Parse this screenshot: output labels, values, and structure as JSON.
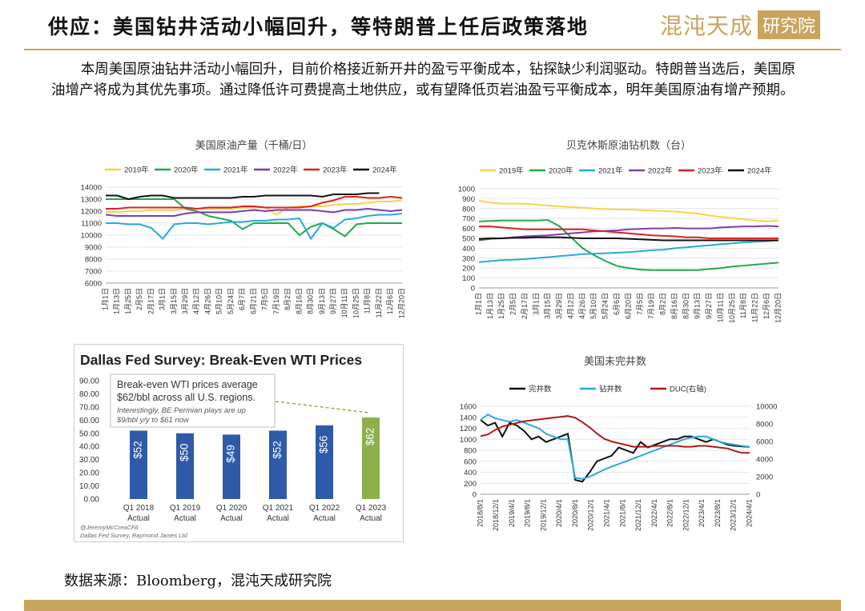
{
  "header": {
    "title": "供应：美国钻井活动小幅回升，等特朗普上任后政策落地",
    "logo_text": "混沌天成",
    "logo_box": "研究院"
  },
  "paragraph": "本周美国原油钻井活动小幅回升，目前价格接近新开井的盈亏平衡成本，钻探缺少利润驱动。特朗普当选后，美国原油增产将成为其优先事项。通过降低许可费提高土地供应，或有望降低页岩油盈亏平衡成本，明年美国原油有增产预期。",
  "source": "数据来源：Bloomberg，混沌天成研究院",
  "colors": {
    "y2019": "#f5d44a",
    "y2020": "#22a84a",
    "y2021": "#29a8dc",
    "y2022": "#7a3fb0",
    "y2023": "#e02020",
    "y2024": "#111111",
    "gold": "#c9a45c",
    "bar": "#2e5aa8",
    "bar_last": "#8db04a"
  },
  "chart_data": [
    {
      "id": "production",
      "type": "line",
      "title": "美国原油产量（千桶/日）",
      "ylim": [
        6000,
        14000
      ],
      "yticks": [
        6000,
        7000,
        8000,
        9000,
        10000,
        11000,
        12000,
        13000,
        14000
      ],
      "x_ticks": [
        "1月1日",
        "1月13日",
        "1月25日",
        "2月5日",
        "2月17日",
        "3月1日",
        "3月15日",
        "3月29日",
        "4月12日",
        "4月26日",
        "5月10日",
        "5月24日",
        "6月7日",
        "6月21日",
        "7月5日",
        "7月19日",
        "8月2日",
        "8月16日",
        "8月30日",
        "9月13日",
        "9月27日",
        "10月11日",
        "10月25日",
        "11月8日",
        "11月22日",
        "12月6日",
        "12月20日"
      ],
      "series": [
        {
          "name": "2019年",
          "color": "#f5d44a",
          "values": [
            11900,
            11900,
            12000,
            12000,
            12100,
            12100,
            12100,
            12200,
            12200,
            12200,
            12200,
            12200,
            12300,
            12300,
            12300,
            11700,
            12300,
            12400,
            12400,
            12400,
            12500,
            12600,
            12600,
            12700,
            12800,
            12800,
            12900
          ]
        },
        {
          "name": "2020年",
          "color": "#22a84a",
          "values": [
            13000,
            13000,
            13000,
            13000,
            13000,
            13000,
            13000,
            12200,
            12000,
            11600,
            11400,
            11200,
            10500,
            11000,
            11000,
            11000,
            11000,
            10000,
            10700,
            11000,
            10500,
            9900,
            10900,
            11000,
            11000,
            11000,
            11000
          ]
        },
        {
          "name": "2021年",
          "color": "#29a8dc",
          "values": [
            11000,
            11000,
            10900,
            10900,
            10600,
            9700,
            10900,
            11000,
            11000,
            10900,
            11000,
            11100,
            11100,
            11200,
            11200,
            11300,
            11300,
            11400,
            9700,
            11000,
            10600,
            11300,
            11400,
            11600,
            11700,
            11700,
            11800
          ]
        },
        {
          "name": "2022年",
          "color": "#7a3fb0",
          "values": [
            11700,
            11600,
            11600,
            11600,
            11600,
            11600,
            11600,
            11800,
            11900,
            11900,
            11900,
            11900,
            12000,
            12100,
            12000,
            12100,
            12100,
            12100,
            12100,
            12000,
            11900,
            12100,
            12100,
            12200,
            12100,
            12000,
            12100
          ]
        },
        {
          "name": "2023年",
          "color": "#e02020",
          "values": [
            12200,
            12200,
            12300,
            12300,
            12300,
            12300,
            12300,
            12300,
            12200,
            12300,
            12300,
            12300,
            12400,
            12400,
            12300,
            12300,
            12300,
            12300,
            12400,
            12700,
            12900,
            13200,
            13200,
            13100,
            13100,
            13200,
            13100
          ]
        },
        {
          "name": "2024年",
          "color": "#111111",
          "values": [
            13300,
            13300,
            13000,
            13200,
            13300,
            13300,
            13100,
            13100,
            13100,
            13100,
            13100,
            13100,
            13200,
            13200,
            13300,
            13300,
            13300,
            13300,
            13300,
            13200,
            13400,
            13400,
            13400,
            13500,
            13500,
            null,
            null
          ]
        }
      ],
      "legend": "top"
    },
    {
      "id": "rigs",
      "type": "line",
      "title": "贝克休斯原油钻机数（台）",
      "ylim": [
        0,
        1000
      ],
      "yticks": [
        0,
        100,
        200,
        300,
        400,
        500,
        600,
        700,
        800,
        900,
        1000
      ],
      "x_ticks": [
        "1月1日",
        "1月13日",
        "1月25日",
        "2月5日",
        "2月17日",
        "3月1日",
        "3月15日",
        "3月29日",
        "4月12日",
        "4月26日",
        "5月10日",
        "5月24日",
        "6月6日",
        "6月20日",
        "7月5日",
        "7月19日",
        "8月2日",
        "8月16日",
        "8月30日",
        "9月13日",
        "9月27日",
        "10月11日",
        "10月25日",
        "11月8日",
        "11月22日",
        "12月6日",
        "12月20日"
      ],
      "series": [
        {
          "name": "2019年",
          "color": "#f5d44a",
          "values": [
            880,
            860,
            850,
            850,
            850,
            840,
            830,
            820,
            815,
            810,
            800,
            795,
            790,
            790,
            785,
            780,
            775,
            770,
            760,
            750,
            730,
            715,
            705,
            690,
            680,
            670,
            680
          ]
        },
        {
          "name": "2020年",
          "color": "#22a84a",
          "values": [
            670,
            675,
            680,
            680,
            680,
            680,
            685,
            620,
            510,
            400,
            330,
            270,
            220,
            200,
            185,
            180,
            180,
            180,
            180,
            180,
            190,
            200,
            215,
            225,
            235,
            245,
            255
          ]
        },
        {
          "name": "2021年",
          "color": "#29a8dc",
          "values": [
            260,
            270,
            280,
            285,
            290,
            300,
            310,
            320,
            330,
            340,
            345,
            350,
            355,
            360,
            370,
            380,
            385,
            400,
            410,
            420,
            430,
            440,
            450,
            460,
            465,
            470,
            480
          ]
        },
        {
          "name": "2022年",
          "color": "#7a3fb0",
          "values": [
            480,
            495,
            500,
            510,
            520,
            525,
            530,
            540,
            550,
            560,
            570,
            575,
            580,
            590,
            595,
            600,
            600,
            605,
            600,
            600,
            600,
            610,
            615,
            620,
            620,
            625,
            620
          ]
        },
        {
          "name": "2023年",
          "color": "#e02020",
          "values": [
            620,
            620,
            610,
            600,
            590,
            590,
            590,
            590,
            590,
            590,
            580,
            570,
            560,
            550,
            540,
            530,
            525,
            520,
            510,
            510,
            500,
            500,
            500,
            500,
            500,
            500,
            500
          ]
        },
        {
          "name": "2024年",
          "color": "#111111",
          "values": [
            495,
            500,
            500,
            505,
            505,
            510,
            510,
            510,
            505,
            500,
            500,
            500,
            500,
            495,
            490,
            485,
            480,
            480,
            480,
            480,
            480,
            480,
            480,
            480,
            480,
            480,
            480
          ]
        }
      ],
      "legend": "top"
    },
    {
      "id": "dallas",
      "type": "bar",
      "title": "Dallas Fed Survey: Break-Even WTI Prices",
      "categories": [
        "Q1 2018\nActual",
        "Q1 2019\nActual",
        "Q1 2020\nActual",
        "Q1 2021\nActual",
        "Q1 2022\nActual",
        "Q1 2023\nActual"
      ],
      "values": [
        52,
        50,
        49,
        52,
        56,
        62
      ],
      "data_labels": [
        "$52",
        "$50",
        "$49",
        "$52",
        "$56",
        "$62"
      ],
      "ylim": [
        0,
        90
      ],
      "yticks": [
        "0.00",
        "10.00",
        "20.00",
        "30.00",
        "40.00",
        "50.00",
        "60.00",
        "70.00",
        "80.00",
        "90.00"
      ],
      "callout_main": "Break-even WTI prices average $62/bbl across all U.S. regions.",
      "callout_sub": "Interestingly, BE Permian plays are up $9/bbl y/y to $61 now",
      "credit1": "@JeremyMcCreaCFA",
      "credit2": "Dallas Fed Survey, Raymond James Ltd"
    },
    {
      "id": "duc",
      "type": "line",
      "title": "美国未完井数",
      "ylim_left": [
        0,
        1600
      ],
      "yticks_left": [
        0,
        200,
        400,
        600,
        800,
        1000,
        1200,
        1400,
        1600
      ],
      "ylim_right": [
        0,
        10000
      ],
      "yticks_right": [
        0,
        2000,
        4000,
        6000,
        8000,
        10000
      ],
      "x_ticks": [
        "2018/8/1",
        "2018/12/1",
        "2019/4/1",
        "2019/8/1",
        "2019/12/1",
        "2020/4/1",
        "2020/8/1",
        "2020/12/1",
        "2021/4/1",
        "2021/8/1",
        "2021/12/1",
        "2022/4/1",
        "2022/8/1",
        "2022/12/1",
        "2023/4/1",
        "2023/8/1",
        "2023/12/1",
        "2024/4/1"
      ],
      "series": [
        {
          "name": "完井数",
          "color": "#111111",
          "axis": "left",
          "values": [
            1350,
            1250,
            1300,
            1050,
            1300,
            1250,
            1150,
            1000,
            1050,
            950,
            1000,
            1050,
            1100,
            260,
            230,
            400,
            600,
            650,
            700,
            850,
            800,
            750,
            950,
            850,
            900,
            950,
            1000,
            1000,
            1050,
            1050,
            1000,
            950,
            1000,
            950,
            900,
            880,
            870,
            860
          ]
        },
        {
          "name": "钻井数",
          "color": "#29a8dc",
          "axis": "left",
          "values": [
            1350,
            1450,
            1380,
            1350,
            1320,
            1350,
            1300,
            1250,
            1200,
            1100,
            1050,
            1000,
            1000,
            300,
            280,
            320,
            380,
            450,
            500,
            550,
            600,
            650,
            700,
            750,
            800,
            850,
            900,
            950,
            1000,
            1030,
            1050,
            1050,
            1000,
            950,
            920,
            900,
            880,
            860
          ]
        },
        {
          "name": "DUC(右轴)",
          "color": "#b01818",
          "axis": "right",
          "values": [
            6600,
            6800,
            7300,
            7700,
            7900,
            8100,
            8300,
            8400,
            8500,
            8600,
            8700,
            8800,
            8900,
            8700,
            8200,
            7600,
            6900,
            6300,
            6000,
            5800,
            5600,
            5400,
            5400,
            5400,
            5500,
            5500,
            5500,
            5500,
            5400,
            5400,
            5500,
            5500,
            5400,
            5300,
            5200,
            4900,
            4700,
            4700
          ]
        }
      ],
      "legend": "top"
    }
  ]
}
